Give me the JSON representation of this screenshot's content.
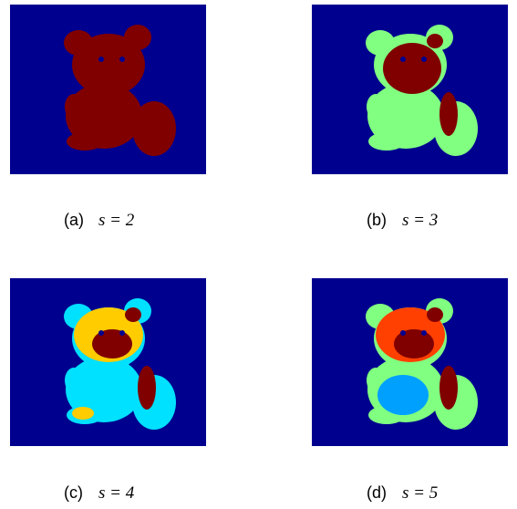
{
  "panels": [
    {
      "label": "(a)",
      "equation": "s = 2"
    },
    {
      "label": "(b)",
      "equation": "s = 3"
    },
    {
      "label": "(c)",
      "equation": "s = 4"
    },
    {
      "label": "(d)",
      "equation": "s = 5"
    }
  ]
}
